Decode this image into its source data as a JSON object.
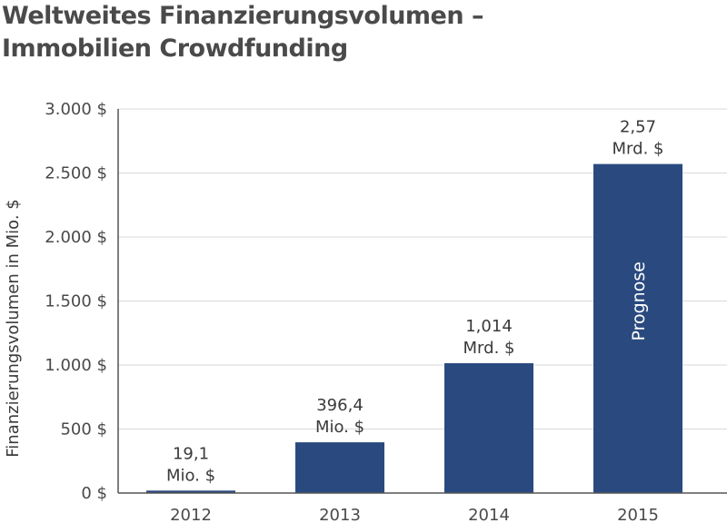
{
  "title": {
    "line1": "Weltweites Finanzierungsvolumen –",
    "line2": "Immobilien Crowdfunding"
  },
  "chart_data": {
    "type": "bar",
    "title": "Weltweites Finanzierungsvolumen – Immobilien Crowdfunding",
    "xlabel": "",
    "ylabel": "Finanzierungsvolumen in Mio. $",
    "categories": [
      "2012",
      "2013",
      "2014",
      "2015"
    ],
    "values": [
      19.1,
      396.4,
      1014,
      2570
    ],
    "data_labels": [
      [
        "19,1",
        "Mio. $"
      ],
      [
        "396,4",
        "Mio. $"
      ],
      [
        "1,014",
        "Mrd. $"
      ],
      [
        "2,57",
        "Mrd. $"
      ]
    ],
    "bar_annotations": [
      "",
      "",
      "",
      "Prognose"
    ],
    "ylim": [
      0,
      3000
    ],
    "yticks": [
      0,
      500,
      1000,
      1500,
      2000,
      2500,
      3000
    ],
    "ytick_labels": [
      "0 $",
      "500 $",
      "1.000 $",
      "1.500 $",
      "2.000 $",
      "2.500 $",
      "3.000 $"
    ],
    "grid": true,
    "bar_color": "#2a4a7f",
    "grid_color": "#d9d9d9",
    "axis_color": "#555555"
  }
}
